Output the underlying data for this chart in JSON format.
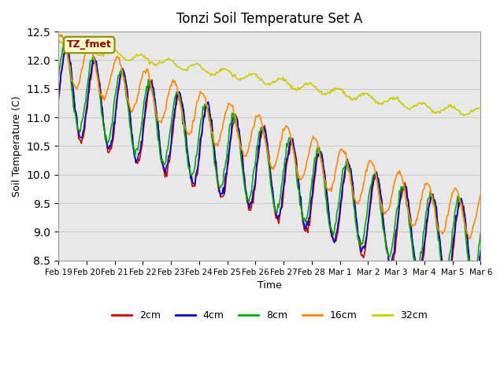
{
  "title": "Tonzi Soil Temperature Set A",
  "xlabel": "Time",
  "ylabel": "Soil Temperature (C)",
  "ylim": [
    8.5,
    12.5
  ],
  "annotation_text": "TZ_fmet",
  "annotation_color": "#8B0000",
  "annotation_bg": "#FFFFCC",
  "annotation_border": "#8B8B00",
  "grid_color": "#CCCCCC",
  "bg_color": "#E8E8E8",
  "legend_labels": [
    "2cm",
    "4cm",
    "8cm",
    "16cm",
    "32cm"
  ],
  "line_colors": [
    "#CC0000",
    "#0000CC",
    "#00AA00",
    "#FF8800",
    "#CCCC00"
  ],
  "x_tick_labels": [
    "Feb 19",
    "Feb 20",
    "Feb 21",
    "Feb 22",
    "Feb 23",
    "Feb 24",
    "Feb 25",
    "Feb 26",
    "Feb 27",
    "Feb 28",
    "Mar 1",
    "Mar 2",
    "Mar 3",
    "Mar 4",
    "Mar 5",
    "Mar 6"
  ],
  "n_points": 480
}
